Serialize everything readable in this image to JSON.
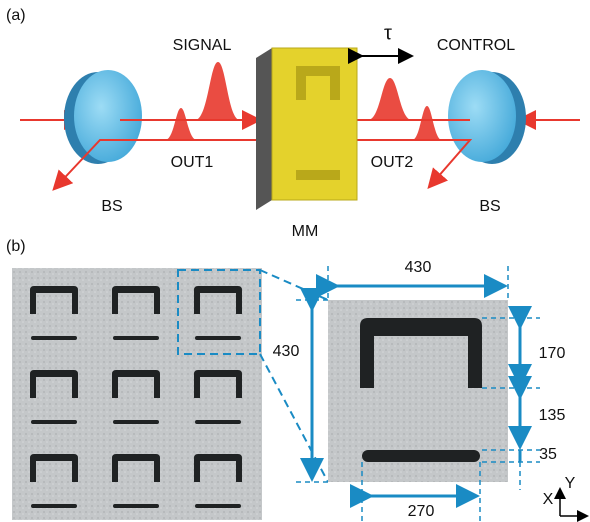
{
  "panel_a": {
    "label": "(a)",
    "signal": "SIGNAL",
    "tau": "τ",
    "control": "CONTROL",
    "out1": "OUT1",
    "out2": "OUT2",
    "bs_left": "BS",
    "bs_right": "BS",
    "mm": "MM"
  },
  "panel_b": {
    "label": "(b)",
    "width_top": "430",
    "height_left": "430",
    "gap_170": "170",
    "gap_135": "135",
    "bar_35": "35",
    "bar_270": "270",
    "axis_x": "X",
    "axis_y": "Y"
  }
}
